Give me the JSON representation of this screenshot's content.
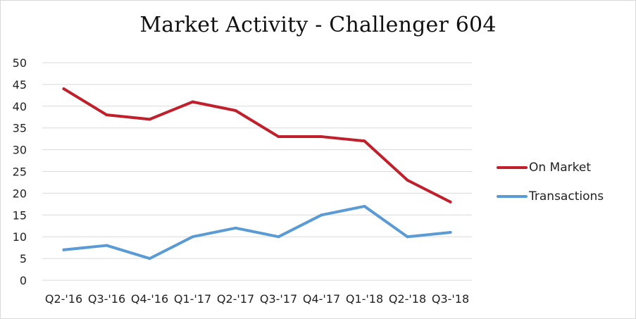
{
  "chart_data": {
    "type": "line",
    "title": "Market Activity - Challenger 604",
    "xlabel": "",
    "ylabel": "",
    "categories": [
      "Q2-'16",
      "Q3-'16",
      "Q4-'16",
      "Q1-'17",
      "Q2-'17",
      "Q3-'17",
      "Q4-'17",
      "Q1-'18",
      "Q2-'18",
      "Q3-'18"
    ],
    "ylim": [
      0,
      50
    ],
    "yticks": [
      0,
      5,
      10,
      15,
      20,
      25,
      30,
      35,
      40,
      45,
      50
    ],
    "grid": true,
    "legend_position": "right",
    "series": [
      {
        "name": "On Market",
        "color": "#c0202b",
        "values": [
          44,
          38,
          37,
          41,
          39,
          33,
          33,
          32,
          23,
          18
        ]
      },
      {
        "name": "Transactions",
        "color": "#5b9bd5",
        "values": [
          7,
          8,
          5,
          10,
          12,
          10,
          15,
          17,
          10,
          11
        ]
      }
    ]
  }
}
